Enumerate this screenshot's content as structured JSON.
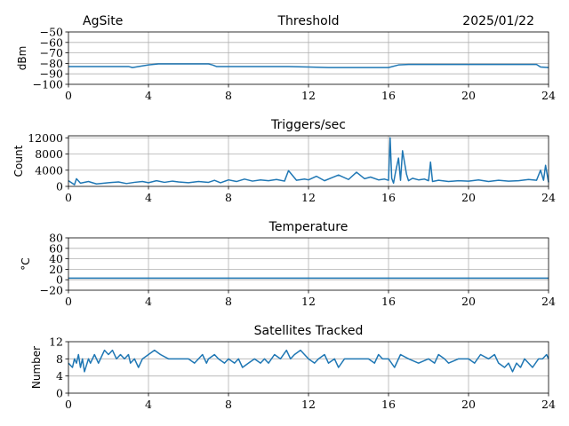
{
  "header": {
    "site": "AgSite",
    "date": "2025/01/22"
  },
  "colors": {
    "series": "#1f77b4",
    "grid": "#b0b0b0"
  },
  "chart_data": [
    {
      "type": "line",
      "title": "Threshold",
      "xlabel": "",
      "ylabel": "dBm",
      "xlim": [
        0,
        24
      ],
      "ylim": [
        -100,
        -50
      ],
      "xticks": [
        0,
        4,
        8,
        12,
        16,
        20,
        24
      ],
      "yticks": [
        -100,
        -90,
        -80,
        -70,
        -60,
        -50
      ],
      "ytick_labels": [
        "−100",
        "−90",
        "−80",
        "−70",
        "−60",
        "−50"
      ],
      "grid": true,
      "series": [
        {
          "x": [
            0,
            1,
            2,
            3,
            3.2,
            4,
            4.5,
            5,
            6,
            7,
            7.2,
            7.4,
            8,
            9,
            10,
            11,
            12,
            13,
            14,
            15,
            16,
            16.5,
            17,
            18,
            19,
            20,
            21,
            22,
            23,
            23.4,
            23.6,
            24
          ],
          "y": [
            -83,
            -83,
            -83,
            -83,
            -84,
            -81.5,
            -80.5,
            -80.5,
            -80.5,
            -80.5,
            -81.5,
            -83,
            -83,
            -83,
            -83,
            -83,
            -83.5,
            -84,
            -84,
            -84,
            -84,
            -81.5,
            -81,
            -81,
            -81,
            -81,
            -81,
            -81,
            -81,
            -81,
            -83.5,
            -84
          ]
        }
      ]
    },
    {
      "type": "line",
      "title": "Triggers/sec",
      "xlabel": "",
      "ylabel": "Count",
      "xlim": [
        0,
        24
      ],
      "ylim": [
        0,
        12500
      ],
      "xticks": [
        0,
        4,
        8,
        12,
        16,
        20,
        24
      ],
      "yticks": [
        0,
        4000,
        8000,
        12000
      ],
      "ytick_labels": [
        "0",
        "4000",
        "8000",
        "12000"
      ],
      "grid": true,
      "series": [
        {
          "x": [
            0,
            0.3,
            0.4,
            0.6,
            1.0,
            1.4,
            2.0,
            2.5,
            2.9,
            3.3,
            3.7,
            4.0,
            4.4,
            4.8,
            5.2,
            5.5,
            6.0,
            6.5,
            7.0,
            7.3,
            7.6,
            8.0,
            8.4,
            8.8,
            9.2,
            9.6,
            10.0,
            10.4,
            10.8,
            11.0,
            11.4,
            11.8,
            12.0,
            12.4,
            12.8,
            13.2,
            13.5,
            14.0,
            14.4,
            14.8,
            15.1,
            15.5,
            15.8,
            16.0,
            16.08,
            16.16,
            16.25,
            16.35,
            16.5,
            16.6,
            16.7,
            16.9,
            17.0,
            17.2,
            17.5,
            17.8,
            18.0,
            18.1,
            18.2,
            18.5,
            19.0,
            19.5,
            20.0,
            20.5,
            21.0,
            21.5,
            22.0,
            22.5,
            23.0,
            23.4,
            23.6,
            23.75,
            23.85,
            24.0
          ],
          "y": [
            1400,
            400,
            1900,
            800,
            1200,
            600,
            900,
            1100,
            700,
            1000,
            1200,
            900,
            1400,
            1000,
            1300,
            1100,
            900,
            1200,
            1000,
            1500,
            900,
            1600,
            1200,
            1800,
            1300,
            1600,
            1400,
            1700,
            1300,
            3900,
            1500,
            1800,
            1600,
            2500,
            1400,
            2200,
            2800,
            1700,
            3500,
            1900,
            2300,
            1600,
            1800,
            1500,
            12000,
            2000,
            800,
            3500,
            7000,
            1500,
            8800,
            3000,
            1400,
            2000,
            1600,
            1800,
            1400,
            6000,
            1200,
            1500,
            1200,
            1400,
            1300,
            1600,
            1200,
            1500,
            1300,
            1400,
            1700,
            1500,
            4000,
            1500,
            5200,
            1000
          ]
        }
      ]
    },
    {
      "type": "line",
      "title": "Temperature",
      "xlabel": "",
      "ylabel": "°C",
      "xlim": [
        0,
        24
      ],
      "ylim": [
        -20,
        80
      ],
      "xticks": [
        0,
        4,
        8,
        12,
        16,
        20,
        24
      ],
      "yticks": [
        -20,
        0,
        20,
        40,
        60,
        80
      ],
      "ytick_labels": [
        "−20",
        "0",
        "20",
        "40",
        "60",
        "80"
      ],
      "grid": true,
      "series": [
        {
          "x": [
            0,
            24
          ],
          "y": [
            3,
            3
          ]
        }
      ]
    },
    {
      "type": "line",
      "title": "Satellites Tracked",
      "xlabel": "",
      "ylabel": "Number",
      "xlim": [
        0,
        24
      ],
      "ylim": [
        0,
        12
      ],
      "xticks": [
        0,
        4,
        8,
        12,
        16,
        20,
        24
      ],
      "yticks": [
        0,
        4,
        8,
        12
      ],
      "ytick_labels": [
        "0",
        "4",
        "8",
        "12"
      ],
      "grid": true,
      "series": [
        {
          "x": [
            0,
            0.2,
            0.3,
            0.4,
            0.5,
            0.6,
            0.7,
            0.8,
            1.0,
            1.1,
            1.3,
            1.4,
            1.5,
            1.7,
            1.8,
            2.0,
            2.2,
            2.4,
            2.6,
            2.8,
            3.0,
            3.1,
            3.3,
            3.5,
            3.7,
            4.0,
            4.3,
            4.6,
            5.0,
            5.5,
            6.0,
            6.3,
            6.5,
            6.7,
            6.9,
            7.0,
            7.3,
            7.5,
            7.8,
            8.0,
            8.3,
            8.5,
            8.7,
            9.0,
            9.3,
            9.6,
            9.8,
            10.0,
            10.3,
            10.6,
            10.9,
            11.1,
            11.3,
            11.6,
            12.0,
            12.3,
            12.5,
            12.8,
            13.0,
            13.3,
            13.5,
            13.8,
            14.0,
            14.5,
            15.0,
            15.3,
            15.5,
            15.7,
            16.0,
            16.3,
            16.6,
            17.0,
            17.5,
            18.0,
            18.3,
            18.5,
            18.8,
            19.0,
            19.5,
            20.0,
            20.3,
            20.6,
            21.0,
            21.3,
            21.5,
            21.8,
            22.0,
            22.2,
            22.4,
            22.6,
            22.8,
            23.0,
            23.2,
            23.5,
            23.7,
            23.9,
            24.0
          ],
          "y": [
            7,
            6,
            8,
            7,
            9,
            6,
            8,
            5,
            8,
            7,
            9,
            8,
            7,
            9,
            10,
            9,
            10,
            8,
            9,
            8,
            9,
            7,
            8,
            6,
            8,
            9,
            10,
            9,
            8,
            8,
            8,
            7,
            8,
            9,
            7,
            8,
            9,
            8,
            7,
            8,
            7,
            8,
            6,
            7,
            8,
            7,
            8,
            7,
            9,
            8,
            10,
            8,
            9,
            10,
            8,
            7,
            8,
            9,
            7,
            8,
            6,
            8,
            8,
            8,
            8,
            7,
            9,
            8,
            8,
            6,
            9,
            8,
            7,
            8,
            7,
            9,
            8,
            7,
            8,
            8,
            7,
            9,
            8,
            9,
            7,
            6,
            7,
            5,
            7,
            6,
            8,
            7,
            6,
            8,
            8,
            9,
            8
          ]
        }
      ]
    }
  ]
}
